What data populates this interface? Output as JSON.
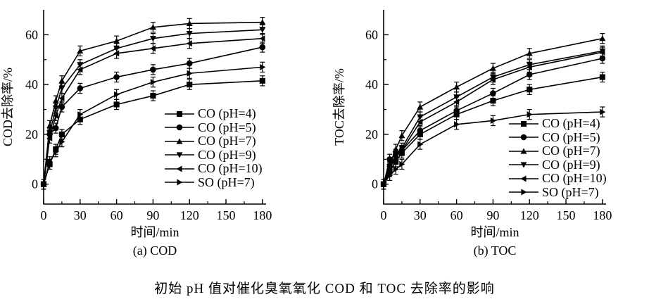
{
  "caption": "初始 pH 值对催化臭氧氧化 COD 和 TOC 去除率的影响",
  "colors": {
    "ink": "#000000",
    "background": "#ffffff"
  },
  "chart_data": [
    {
      "type": "line",
      "subtitle": "(a) COD",
      "xlabel": "时间/min",
      "ylabel": "COD去除率/%",
      "x": [
        0,
        5,
        10,
        15,
        30,
        60,
        90,
        120,
        180
      ],
      "xticks": [
        0,
        30,
        60,
        90,
        120,
        150,
        180
      ],
      "xticks_minor": [
        15,
        45,
        75,
        105,
        135,
        165
      ],
      "yticks": [
        0,
        20,
        40,
        60
      ],
      "yticks_minor": [
        10,
        30,
        50
      ],
      "xlim": [
        0,
        183
      ],
      "ylim": [
        -8,
        70
      ],
      "grid": false,
      "error_bar": 2,
      "legend_position": "lower-right",
      "series": [
        {
          "name": "CO (pH=4)",
          "marker": "square",
          "values": [
            0,
            8,
            14,
            20,
            26,
            32,
            35.5,
            40,
            41.5
          ]
        },
        {
          "name": "CO (pH=5)",
          "marker": "circle",
          "values": [
            0,
            20,
            22.5,
            31,
            38.5,
            43,
            46,
            48.5,
            55
          ]
        },
        {
          "name": "CO (pH=7)",
          "marker": "triangle-up",
          "values": [
            0,
            23.5,
            33.5,
            41.5,
            53.5,
            57.5,
            63,
            64.5,
            65
          ]
        },
        {
          "name": "CO (pH=9)",
          "marker": "triangle-down",
          "values": [
            0,
            20.5,
            30.5,
            38.5,
            48,
            54.5,
            58.5,
            60.5,
            62
          ]
        },
        {
          "name": "CO (pH=10)",
          "marker": "triangle-left",
          "values": [
            0,
            18.5,
            27.5,
            34.5,
            46,
            52.5,
            54.5,
            56.5,
            58.5
          ]
        },
        {
          "name": "SO (pH=7)",
          "marker": "triangle-right",
          "values": [
            0,
            9,
            13,
            17,
            28,
            36,
            41,
            44.5,
            47
          ]
        }
      ]
    },
    {
      "type": "line",
      "subtitle": "(b) TOC",
      "xlabel": "时间/min",
      "ylabel": "TOC去除率/%",
      "x": [
        0,
        5,
        10,
        15,
        30,
        60,
        90,
        120,
        180
      ],
      "xticks": [
        0,
        30,
        60,
        90,
        120,
        150,
        180
      ],
      "xticks_minor": [
        15,
        45,
        75,
        105,
        135,
        165
      ],
      "yticks": [
        0,
        20,
        40,
        60
      ],
      "yticks_minor": [
        10,
        30,
        50
      ],
      "xlim": [
        0,
        183
      ],
      "ylim": [
        -8,
        70
      ],
      "grid": false,
      "error_bar": 2,
      "legend_position": "lower-right",
      "series": [
        {
          "name": "CO (pH=4)",
          "marker": "square",
          "values": [
            0,
            5,
            9,
            12.5,
            20,
            28,
            33.5,
            38,
            43
          ]
        },
        {
          "name": "CO (pH=5)",
          "marker": "circle",
          "values": [
            0,
            10,
            12,
            13.5,
            21.5,
            29.5,
            36.5,
            44,
            50.5
          ]
        },
        {
          "name": "CO (pH=7)",
          "marker": "triangle-up",
          "values": [
            0,
            8,
            14,
            19.5,
            31,
            39,
            46.5,
            52.5,
            58.5
          ]
        },
        {
          "name": "CO (pH=9)",
          "marker": "triangle-down",
          "values": [
            0,
            7,
            12,
            14.5,
            27,
            35,
            43,
            48,
            53.5
          ]
        },
        {
          "name": "CO (pH=10)",
          "marker": "triangle-left",
          "values": [
            0,
            6.5,
            11,
            13.5,
            25,
            33,
            42,
            47,
            53
          ]
        },
        {
          "name": "SO (pH=7)",
          "marker": "triangle-right",
          "values": [
            0,
            3.5,
            6,
            8,
            16,
            24,
            25.5,
            28,
            29
          ]
        }
      ]
    }
  ]
}
